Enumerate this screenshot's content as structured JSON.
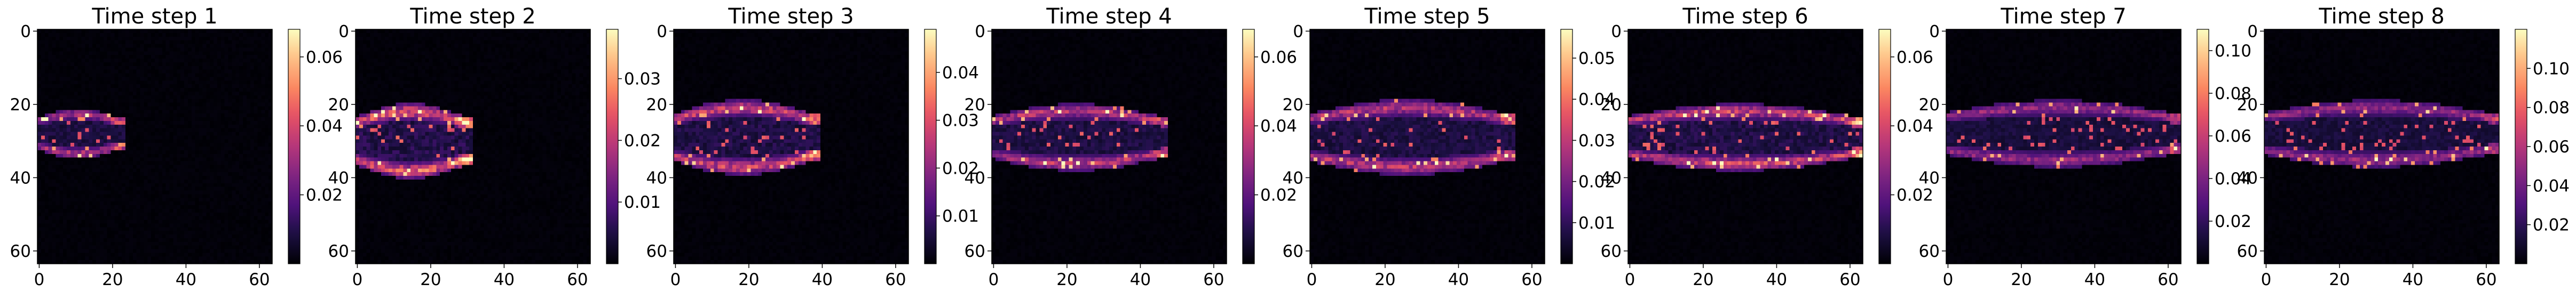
{
  "chart_data": [
    {
      "type": "heatmap",
      "title": "Time step 1",
      "xticks": [
        0,
        20,
        40,
        60
      ],
      "yticks": [
        0,
        20,
        40,
        60
      ],
      "xlim": [
        0,
        64
      ],
      "ylim": [
        64,
        0
      ],
      "colorbar": {
        "colormap": "magma",
        "vmin": 0,
        "vmax": 0.068,
        "ticks": [
          "0.02",
          "0.04",
          "0.06"
        ],
        "tick_values": [
          0.02,
          0.04,
          0.06
        ]
      },
      "plume": {
        "x_end": 22,
        "y_center": 28,
        "half_height": 6,
        "intensity": 0.55
      }
    },
    {
      "type": "heatmap",
      "title": "Time step 2",
      "xticks": [
        0,
        20,
        40,
        60
      ],
      "yticks": [
        0,
        20,
        40,
        60
      ],
      "xlim": [
        0,
        64
      ],
      "ylim": [
        64,
        0
      ],
      "colorbar": {
        "colormap": "magma",
        "vmin": 0,
        "vmax": 0.038,
        "ticks": [
          "0.01",
          "0.02",
          "0.03"
        ],
        "tick_values": [
          0.01,
          0.02,
          0.03
        ]
      },
      "plume": {
        "x_end": 30,
        "y_center": 30,
        "half_height": 9,
        "intensity": 0.85
      }
    },
    {
      "type": "heatmap",
      "title": "Time step 3",
      "xticks": [
        0,
        20,
        40,
        60
      ],
      "yticks": [
        0,
        20,
        40,
        60
      ],
      "xlim": [
        0,
        64
      ],
      "ylim": [
        64,
        0
      ],
      "colorbar": {
        "colormap": "magma",
        "vmin": 0,
        "vmax": 0.049,
        "ticks": [
          "0.01",
          "0.02",
          "0.03",
          "0.04"
        ],
        "tick_values": [
          0.01,
          0.02,
          0.03,
          0.04
        ]
      },
      "plume": {
        "x_end": 38,
        "y_center": 29,
        "half_height": 9,
        "intensity": 0.7
      }
    },
    {
      "type": "heatmap",
      "title": "Time step 4",
      "xticks": [
        0,
        20,
        40,
        60
      ],
      "yticks": [
        0,
        20,
        40,
        60
      ],
      "xlim": [
        0,
        64
      ],
      "ylim": [
        64,
        0
      ],
      "colorbar": {
        "colormap": "magma",
        "vmin": 0,
        "vmax": 0.068,
        "ticks": [
          "0.02",
          "0.04",
          "0.06"
        ],
        "tick_values": [
          0.02,
          0.04,
          0.06
        ]
      },
      "plume": {
        "x_end": 46,
        "y_center": 29,
        "half_height": 8,
        "intensity": 0.6
      }
    },
    {
      "type": "heatmap",
      "title": "Time step 5",
      "xticks": [
        0,
        20,
        40,
        60
      ],
      "yticks": [
        0,
        20,
        40,
        60
      ],
      "xlim": [
        0,
        64
      ],
      "ylim": [
        64,
        0
      ],
      "colorbar": {
        "colormap": "magma",
        "vmin": 0,
        "vmax": 0.057,
        "ticks": [
          "0.01",
          "0.02",
          "0.03",
          "0.04",
          "0.05"
        ],
        "tick_values": [
          0.01,
          0.02,
          0.03,
          0.04,
          0.05
        ]
      },
      "plume": {
        "x_end": 54,
        "y_center": 29,
        "half_height": 9,
        "intensity": 0.6
      }
    },
    {
      "type": "heatmap",
      "title": "Time step 6",
      "xticks": [
        0,
        20,
        40,
        60
      ],
      "yticks": [
        0,
        20,
        40,
        60
      ],
      "xlim": [
        0,
        64
      ],
      "ylim": [
        64,
        0
      ],
      "colorbar": {
        "colormap": "magma",
        "vmin": 0,
        "vmax": 0.068,
        "ticks": [
          "0.02",
          "0.04",
          "0.06"
        ],
        "tick_values": [
          0.02,
          0.04,
          0.06
        ]
      },
      "plume": {
        "x_end": 62,
        "y_center": 29,
        "half_height": 8,
        "intensity": 0.7
      }
    },
    {
      "type": "heatmap",
      "title": "Time step 7",
      "xticks": [
        0,
        20,
        40,
        60
      ],
      "yticks": [
        0,
        20,
        40,
        60
      ],
      "xlim": [
        0,
        64
      ],
      "ylim": [
        64,
        0
      ],
      "colorbar": {
        "colormap": "magma",
        "vmin": 0,
        "vmax": 0.11,
        "ticks": [
          "0.02",
          "0.04",
          "0.06",
          "0.08",
          "0.10"
        ],
        "tick_values": [
          0.02,
          0.04,
          0.06,
          0.08,
          0.1
        ]
      },
      "plume": {
        "x_end": 62,
        "y_center": 28,
        "half_height": 8,
        "intensity": 0.45
      }
    },
    {
      "type": "heatmap",
      "title": "Time step 8",
      "xticks": [
        0,
        20,
        40,
        60
      ],
      "yticks": [
        0,
        20,
        40,
        60
      ],
      "xlim": [
        0,
        64
      ],
      "ylim": [
        64,
        0
      ],
      "colorbar": {
        "colormap": "magma",
        "vmin": 0,
        "vmax": 0.12,
        "ticks": [
          "0.02",
          "0.04",
          "0.06",
          "0.08",
          "0.10"
        ],
        "tick_values": [
          0.02,
          0.04,
          0.06,
          0.08,
          0.1
        ]
      },
      "plume": {
        "x_end": 62,
        "y_center": 28,
        "half_height": 8,
        "intensity": 0.45
      }
    }
  ]
}
